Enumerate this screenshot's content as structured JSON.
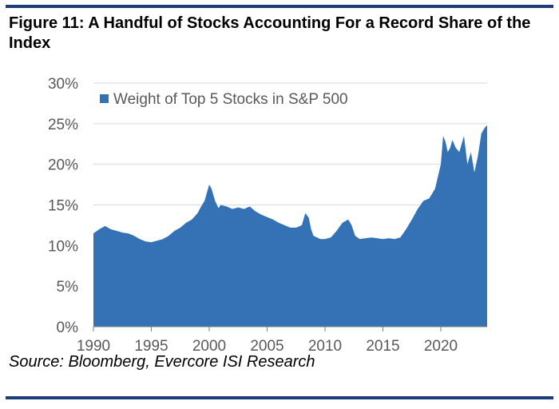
{
  "figure": {
    "title": "Figure 11: A Handful of Stocks Accounting For a Record Share of the Index",
    "source": "Source: Bloomberg, Evercore ISI Research"
  },
  "colors": {
    "series": "#3471b5",
    "rule": "#1f3c78",
    "gridline": "#d9d9d9",
    "axis": "#7f7f7f"
  },
  "chart_data": {
    "type": "area",
    "title": "Figure 11: A Handful of Stocks Accounting For a Record Share of the Index",
    "xlabel": "",
    "ylabel": "",
    "xlim": [
      1990,
      2024
    ],
    "ylim": [
      0,
      30
    ],
    "y_ticks": [
      "0%",
      "5%",
      "10%",
      "15%",
      "20%",
      "25%",
      "30%"
    ],
    "x_ticks": [
      "1990",
      "1995",
      "2000",
      "2005",
      "2010",
      "2015",
      "2020"
    ],
    "grid": "horizontal",
    "legend_position": "top-left",
    "series": [
      {
        "name": "Weight of Top 5 Stocks in S&P 500",
        "x": [
          1990,
          1990.5,
          1991,
          1991.5,
          1992,
          1992.5,
          1993,
          1993.5,
          1994,
          1994.5,
          1995,
          1995.5,
          1996,
          1996.5,
          1997,
          1997.5,
          1998,
          1998.5,
          1999,
          1999.3,
          1999.6,
          1999.8,
          2000,
          2000.2,
          2000.5,
          2000.8,
          2001,
          2001.5,
          2002,
          2002.5,
          2003,
          2003.5,
          2004,
          2004.5,
          2005,
          2005.5,
          2006,
          2006.5,
          2007,
          2007.5,
          2008,
          2008.3,
          2008.6,
          2008.8,
          2009,
          2009.3,
          2009.6,
          2010,
          2010.5,
          2011,
          2011.5,
          2012,
          2012.3,
          2012.6,
          2013,
          2013.5,
          2014,
          2014.5,
          2015,
          2015.5,
          2016,
          2016.5,
          2017,
          2017.5,
          2018,
          2018.5,
          2019,
          2019.5,
          2020,
          2020.2,
          2020.4,
          2020.6,
          2020.8,
          2021,
          2021.3,
          2021.6,
          2022,
          2022.3,
          2022.6,
          2022.9,
          2023.2,
          2023.5,
          2023.8,
          2024
        ],
        "values": [
          11.5,
          12,
          12.4,
          12,
          11.8,
          11.6,
          11.5,
          11.2,
          10.8,
          10.5,
          10.4,
          10.6,
          10.8,
          11.2,
          11.8,
          12.2,
          12.8,
          13.2,
          14,
          14.8,
          15.5,
          16.5,
          17.5,
          17,
          15.5,
          14.6,
          15,
          14.8,
          14.5,
          14.7,
          14.5,
          14.8,
          14.2,
          13.8,
          13.5,
          13.2,
          12.8,
          12.5,
          12.2,
          12.2,
          12.5,
          14,
          13.4,
          12,
          11.2,
          11,
          10.8,
          10.8,
          11,
          11.8,
          12.8,
          13.2,
          12.5,
          11.2,
          10.8,
          10.9,
          11,
          10.9,
          10.8,
          10.9,
          10.8,
          11,
          12,
          13.2,
          14.5,
          15.5,
          15.8,
          17,
          20,
          23.5,
          22.8,
          21.5,
          22,
          23,
          22,
          21.5,
          23.5,
          20,
          21.5,
          19,
          21,
          23.8,
          24.5,
          24.8
        ]
      }
    ]
  }
}
